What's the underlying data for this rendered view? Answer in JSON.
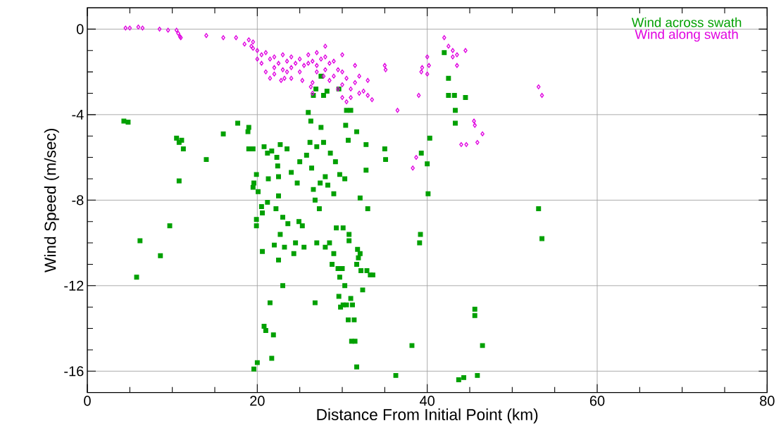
{
  "chart_data": {
    "type": "scatter",
    "xlabel": "Distance From Initial Point (km)",
    "ylabel": "Wind Speed (m/sec)",
    "xlim": [
      0,
      80
    ],
    "ylim": [
      -17,
      1
    ],
    "xticks": [
      0,
      20,
      40,
      60,
      80
    ],
    "yticks": [
      0,
      -4,
      -8,
      -12,
      -16
    ],
    "grid": true,
    "legend": "top right",
    "series": [
      {
        "name": "Wind across swath",
        "color": "#00a000",
        "marker": "square",
        "x": [
          4.3,
          4.8,
          10.5,
          10.8,
          11.1,
          11.3,
          10.8,
          14,
          16,
          17.7,
          19,
          18.9,
          19,
          19.5,
          19.9,
          19.6,
          19.5,
          20.1,
          20.5,
          20.6,
          19.9,
          19.9,
          9.7,
          6.2,
          8.6,
          5.8,
          19.6,
          20,
          21.7,
          20.8,
          21,
          21.9,
          21.5,
          20.6,
          22,
          23,
          22.5,
          23.2,
          26.8,
          24.5,
          24.3,
          25.5,
          27,
          28,
          28.5,
          29,
          28.8,
          29.5,
          29.7,
          30,
          30.3,
          29.6,
          30.1,
          30.5,
          29.8,
          31,
          31.2,
          30.7,
          31.4,
          31.1,
          31.5,
          32.4,
          31.7,
          32.2,
          32.9,
          33.3,
          33.6,
          31.8,
          32.1,
          31.7,
          31.9,
          30.8,
          30.8,
          29.3,
          30.1,
          27.3,
          25.3,
          24.9,
          26.8,
          26.6,
          27.4,
          28.0,
          28.3,
          29,
          29.7,
          30.3,
          32.8,
          29.2,
          26.4,
          24,
          24.7,
          22.5,
          21.2,
          22.2,
          23,
          23.6,
          22.7,
          21.3,
          22.4,
          21.2,
          21.7,
          20.8,
          22.7,
          23.5,
          22.3,
          22.5,
          25,
          25.8,
          26.2,
          27,
          27.8,
          28.6,
          27.5,
          26.3,
          26,
          26.6,
          27.8,
          28.2,
          26.9,
          27.5,
          29.6,
          30.5,
          31,
          30.4,
          31.7,
          32.8,
          30.7,
          32.1,
          33,
          35.1,
          35,
          36.3,
          38.2,
          39.1,
          39.2,
          39.3,
          40,
          40.1,
          40.3,
          42,
          42.5,
          42.5,
          43.2,
          43.3,
          43.3,
          44.5,
          43.7,
          44.3,
          45.9,
          45.6,
          45.6,
          46.5,
          53.1,
          53.5
        ],
        "values": [
          -4.3,
          -4.35,
          -5.1,
          -5.3,
          -5.2,
          -5.6,
          -7.1,
          -6.1,
          -4.9,
          -4.4,
          -4.6,
          -4.8,
          -5.6,
          -5.6,
          -6.8,
          -7.2,
          -7.4,
          -7.6,
          -8.3,
          -8.6,
          -8.9,
          -9.2,
          -9.2,
          -9.9,
          -10.6,
          -11.6,
          -15.9,
          -15.6,
          -15.4,
          -13.9,
          -14.1,
          -14.3,
          -12.8,
          -10.4,
          -10.1,
          -12.0,
          -10.8,
          -10.2,
          -12.8,
          -10.0,
          -10.5,
          -10.2,
          -10.0,
          -10.2,
          -10.0,
          -10.5,
          -11.0,
          -11.2,
          -11.6,
          -11.2,
          -12.0,
          -12.5,
          -12.9,
          -12.9,
          -13.0,
          -12.6,
          -12.9,
          -13.6,
          -13.6,
          -14.6,
          -14.6,
          -12.2,
          -15.8,
          -11.3,
          -11.3,
          -11.5,
          -11.5,
          -10.3,
          -10.5,
          -11.0,
          -10.7,
          -9.9,
          -9.6,
          -9.3,
          -9.3,
          -8.4,
          -9.2,
          -9.0,
          -8.0,
          -7.5,
          -7.2,
          -6.9,
          -7.3,
          -7.7,
          -6.8,
          -7.0,
          -6.6,
          -6.2,
          -6.5,
          -6.7,
          -7.2,
          -7.8,
          -8.1,
          -8.4,
          -8.8,
          -9.1,
          -9.6,
          -7.0,
          -6.4,
          -5.8,
          -5.7,
          -5.5,
          -5.4,
          -5.6,
          -6.0,
          -6.9,
          -6.2,
          -5.9,
          -5.3,
          -5.5,
          -5.3,
          -5.8,
          -4.6,
          -4.3,
          -3.9,
          -3.1,
          -3.1,
          -2.9,
          -2.8,
          -2.2,
          -2.8,
          -3.8,
          -3.8,
          -4.5,
          -4.8,
          -5.4,
          -5.2,
          -7.9,
          -8.4,
          -6.1,
          -5.6,
          -16.2,
          -14.8,
          -10.0,
          -9.6,
          -5.8,
          -6.3,
          -7.7,
          -5.1,
          -1.1,
          -2.3,
          -3.1,
          -3.1,
          -3.8,
          -4.4,
          -3.2,
          -16.4,
          -16.3,
          -16.2,
          -13.1,
          -13.4,
          -14.8,
          -8.4,
          -9.8
        ]
      },
      {
        "name": "Wind along swath",
        "color": "#e000e0",
        "marker": "diamond",
        "x": [
          4.5,
          5,
          6,
          6.5,
          8.5,
          9.5,
          10.5,
          10.7,
          10.9,
          11,
          14,
          16,
          17.5,
          18.5,
          19,
          19.3,
          19.5,
          20,
          20.5,
          21,
          21.5,
          22,
          22,
          22.5,
          23,
          23,
          23.5,
          24,
          24,
          24.5,
          25,
          25,
          25.5,
          26,
          26,
          26.5,
          27,
          27,
          27.5,
          28,
          28,
          28.5,
          29,
          29,
          29.5,
          30,
          30,
          30.5,
          31,
          31,
          31.5,
          32,
          32.5,
          33,
          33.5,
          30,
          30.5,
          22,
          21.5,
          23.5,
          20,
          19.5,
          26.5,
          27,
          28.5,
          29.5,
          31.5,
          32,
          33,
          26.5,
          26.3,
          27.8,
          28,
          30,
          21,
          20.5,
          24,
          22.8,
          23.2,
          25.3,
          35,
          35.1,
          36.5,
          39,
          39.3,
          39.4,
          40,
          40,
          40.2,
          38.3,
          38.7,
          42,
          42.5,
          43,
          43.5,
          43,
          43.5,
          44.5,
          45.5,
          45.6,
          46.5,
          45.9,
          44,
          44.6,
          53.1,
          53.5
        ],
        "values": [
          0.05,
          0.05,
          0.1,
          0.05,
          0,
          -0.05,
          -0.05,
          -0.2,
          -0.35,
          -0.4,
          -0.3,
          -0.4,
          -0.4,
          -0.7,
          -0.5,
          -0.8,
          -0.6,
          -1.0,
          -1.2,
          -1.1,
          -1.4,
          -1.3,
          -1.8,
          -1.6,
          -1.2,
          -1.9,
          -1.5,
          -1.3,
          -1.8,
          -1.6,
          -1.4,
          -2.0,
          -1.7,
          -1.2,
          -1.6,
          -1.5,
          -1.1,
          -1.7,
          -1.4,
          -1.3,
          -1.9,
          -1.6,
          -1.5,
          -2.2,
          -1.9,
          -2.0,
          -2.6,
          -2.3,
          -2.8,
          -3.2,
          -2.5,
          -3.0,
          -2.9,
          -3.1,
          -3.3,
          -3.2,
          -3.4,
          -2.1,
          -2.3,
          -2.0,
          -1.4,
          -0.9,
          -2.5,
          -2.0,
          -2.4,
          -2.8,
          -1.7,
          -2.2,
          -2.4,
          -3.0,
          -2.7,
          -2.2,
          -0.8,
          -1.2,
          -2.0,
          -1.6,
          -2.3,
          -2.4,
          -2.3,
          -2.4,
          -1.7,
          -1.9,
          -3.8,
          -3.1,
          -2.0,
          -1.8,
          -1.3,
          -2.1,
          -1.7,
          -6.5,
          -6.0,
          -0.4,
          -0.8,
          -1.0,
          -1.2,
          -1.3,
          -1.7,
          -1.0,
          -4.3,
          -4.5,
          -4.9,
          -5.3,
          -5.4,
          -5.4,
          -2.7,
          -3.1
        ]
      }
    ]
  }
}
